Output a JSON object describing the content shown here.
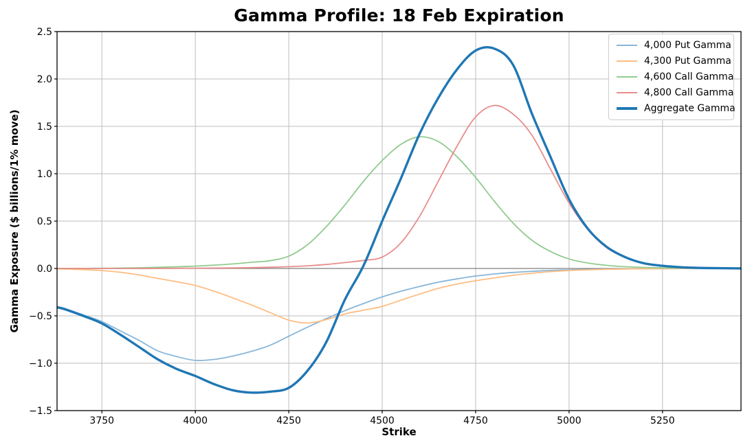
{
  "figure": {
    "title": "Gamma Profile: 18 Feb Expiration",
    "xlabel": "Strike",
    "ylabel": "Gamma Exposure ($ billions/1% move)"
  },
  "colors": {
    "background": "#ffffff",
    "grid": "#bdbdbd",
    "zero_line": "#7f7f7f",
    "spine": "#000000",
    "text": "#000000",
    "legend_border": "#cccccc"
  },
  "chart_data": {
    "type": "line",
    "title": "Gamma Profile: 18 Feb Expiration",
    "xlabel": "Strike",
    "ylabel": "Gamma Exposure ($ billions/1% move)",
    "xlim": [
      3630,
      5460
    ],
    "ylim": [
      -1.5,
      2.5
    ],
    "xticks": [
      3750,
      4000,
      4250,
      4500,
      4750,
      5000,
      5250
    ],
    "xtick_labels": [
      "3750",
      "4000",
      "4250",
      "4500",
      "4750",
      "5000",
      "5250"
    ],
    "yticks": [
      2.5,
      2.0,
      1.5,
      1.0,
      0.5,
      0.0,
      -0.5,
      -1.0,
      -1.5
    ],
    "ytick_labels": [
      "2.5",
      "2.0",
      "1.5",
      "1.0",
      "0.5",
      "0.0",
      "−0.5",
      "−1.0",
      "−1.5"
    ],
    "grid": true,
    "zero_line": true,
    "legend_position": "upper right",
    "x": [
      3630,
      3650,
      3700,
      3750,
      3800,
      3850,
      3900,
      3950,
      4000,
      4050,
      4100,
      4150,
      4200,
      4250,
      4300,
      4350,
      4400,
      4450,
      4500,
      4550,
      4600,
      4650,
      4700,
      4750,
      4800,
      4850,
      4900,
      4950,
      5000,
      5050,
      5100,
      5150,
      5200,
      5250,
      5300,
      5350,
      5400,
      5460
    ],
    "series": [
      {
        "id": "put-4000",
        "name": "4,000 Put Gamma",
        "color": "#88b6d8",
        "width": 1.8,
        "values": [
          -0.4,
          -0.42,
          -0.49,
          -0.56,
          -0.66,
          -0.76,
          -0.87,
          -0.93,
          -0.97,
          -0.96,
          -0.925,
          -0.875,
          -0.81,
          -0.715,
          -0.62,
          -0.53,
          -0.445,
          -0.37,
          -0.3,
          -0.24,
          -0.19,
          -0.145,
          -0.11,
          -0.08,
          -0.058,
          -0.042,
          -0.03,
          -0.021,
          -0.015,
          -0.01,
          -0.007,
          -0.005,
          -0.003,
          -0.002,
          -0.001,
          -0.001,
          0,
          0
        ]
      },
      {
        "id": "put-4300",
        "name": "4,300 Put Gamma",
        "color": "#ffbd82",
        "width": 1.8,
        "values": [
          -0.005,
          -0.006,
          -0.012,
          -0.022,
          -0.04,
          -0.068,
          -0.105,
          -0.14,
          -0.18,
          -0.24,
          -0.31,
          -0.385,
          -0.465,
          -0.545,
          -0.575,
          -0.54,
          -0.48,
          -0.44,
          -0.4,
          -0.335,
          -0.27,
          -0.21,
          -0.165,
          -0.13,
          -0.1,
          -0.072,
          -0.05,
          -0.033,
          -0.022,
          -0.014,
          -0.009,
          -0.005,
          -0.003,
          -0.002,
          -0.001,
          -0.001,
          0,
          0
        ]
      },
      {
        "id": "call-4600",
        "name": "4,600 Call Gamma",
        "color": "#90cb8e",
        "width": 1.8,
        "values": [
          0,
          0,
          0.001,
          0.002,
          0.004,
          0.007,
          0.012,
          0.018,
          0.025,
          0.035,
          0.048,
          0.065,
          0.082,
          0.13,
          0.25,
          0.44,
          0.67,
          0.92,
          1.14,
          1.31,
          1.39,
          1.34,
          1.18,
          0.96,
          0.71,
          0.48,
          0.3,
          0.18,
          0.1,
          0.058,
          0.033,
          0.019,
          0.011,
          0.006,
          0.003,
          0.002,
          0.001,
          0
        ]
      },
      {
        "id": "call-4800",
        "name": "4,800 Call Gamma",
        "color": "#e88c8c",
        "width": 1.8,
        "values": [
          0,
          0,
          0,
          0,
          0,
          0,
          0.001,
          0.002,
          0.003,
          0.004,
          0.006,
          0.009,
          0.013,
          0.019,
          0.028,
          0.042,
          0.062,
          0.085,
          0.12,
          0.27,
          0.55,
          0.92,
          1.29,
          1.6,
          1.72,
          1.63,
          1.41,
          1.05,
          0.69,
          0.41,
          0.22,
          0.115,
          0.058,
          0.028,
          0.013,
          0.006,
          0.002,
          0
        ]
      },
      {
        "id": "aggregate",
        "name": "Aggregate Gamma",
        "color": "#1f77b4",
        "width": 3.4,
        "values": [
          -0.41,
          -0.43,
          -0.5,
          -0.58,
          -0.7,
          -0.83,
          -0.96,
          -1.06,
          -1.135,
          -1.22,
          -1.285,
          -1.31,
          -1.3,
          -1.26,
          -1.08,
          -0.78,
          -0.33,
          0.03,
          0.5,
          0.95,
          1.42,
          1.8,
          2.1,
          2.3,
          2.32,
          2.15,
          1.64,
          1.18,
          0.73,
          0.42,
          0.23,
          0.12,
          0.055,
          0.028,
          0.013,
          0.006,
          0.003,
          0.001
        ]
      }
    ]
  }
}
